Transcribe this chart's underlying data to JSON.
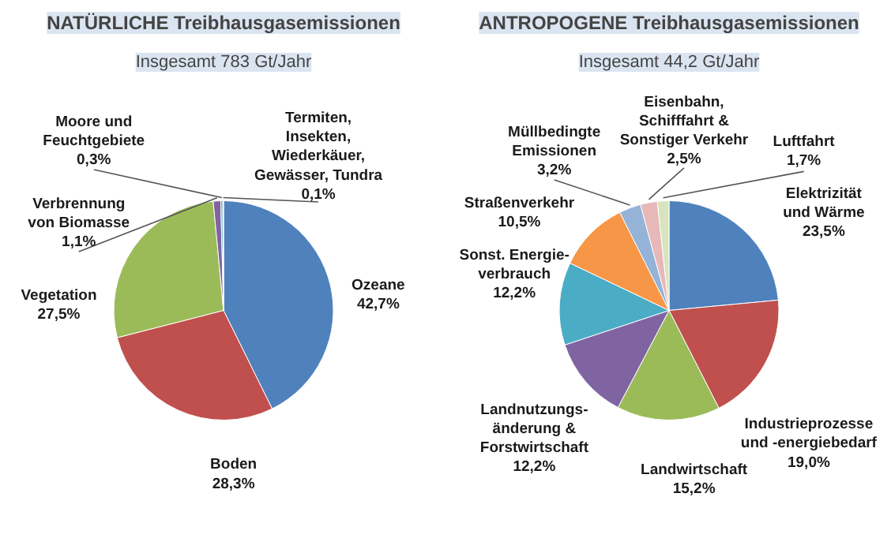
{
  "chart_data": [
    {
      "type": "pie",
      "title": "NATÜRLICHE Treibhausgasemissionen",
      "subtitle": "Insgesamt 783 Gt/Jahr",
      "categories": [
        "Ozeane",
        "Boden",
        "Vegetation",
        "Verbrennung\nvon Biomasse",
        "Moore und\nFeuchtgebiete",
        "Termiten,\nInsekten,\nWiederkäuer,\nGewässer, Tundra"
      ],
      "values": [
        42.7,
        28.3,
        27.5,
        1.1,
        0.3,
        0.1
      ],
      "value_labels": [
        "42,7%",
        "28,3%",
        "27,5%",
        "1,1%",
        "0,3%",
        "0,1%"
      ],
      "colors": [
        "#4f81bd",
        "#c0504d",
        "#9bbb59",
        "#8064a2",
        "#4bacc6",
        "#f79646"
      ]
    },
    {
      "type": "pie",
      "title": "ANTROPOGENE Treibhausgasemissionen",
      "subtitle": "Insgesamt 44,2 Gt/Jahr",
      "categories": [
        "Elektrizität\nund Wärme",
        "Industrieprozesse\nund -energiebedarf",
        "Landwirtschaft",
        "Landnutzungs-\nänderung &\nForstwirtschaft",
        "Sonst. Energie-\nverbrauch",
        "Straßenverkehr",
        "Müllbedingte\nEmissionen",
        "Eisenbahn,\nSchifffahrt &\nSonstiger Verkehr",
        "Luftfahrt"
      ],
      "values": [
        23.5,
        19.0,
        15.2,
        12.2,
        12.2,
        10.5,
        3.2,
        2.5,
        1.7
      ],
      "value_labels": [
        "23,5%",
        "19,0%",
        "15,2%",
        "12,2%",
        "12,2%",
        "10,5%",
        "3,2%",
        "2,5%",
        "1,7%"
      ],
      "colors": [
        "#4f81bd",
        "#c0504d",
        "#9bbb59",
        "#8064a2",
        "#4bacc6",
        "#f79646",
        "#95b3d7",
        "#e6b9b8",
        "#d7e4bd"
      ]
    }
  ]
}
